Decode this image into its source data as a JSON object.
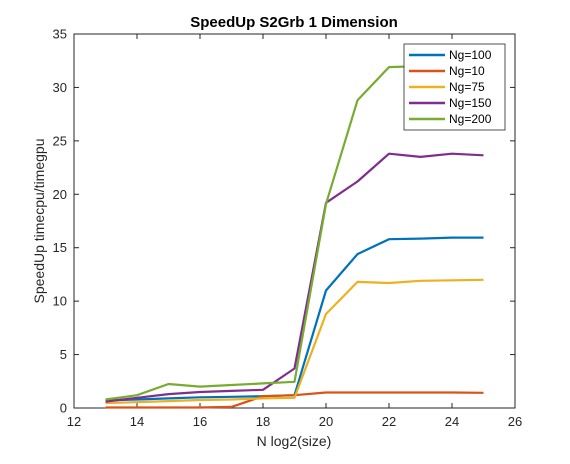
{
  "chart_data": {
    "type": "line",
    "title": "SpeedUp  S2Grb 1 Dimension",
    "xlabel": "N log2(size)",
    "ylabel": "SpeedUp timecpu/timegpu",
    "xlim": [
      12,
      26
    ],
    "ylim": [
      0,
      35
    ],
    "xticks": [
      12,
      14,
      16,
      18,
      20,
      22,
      24,
      26
    ],
    "yticks": [
      0,
      5,
      10,
      15,
      20,
      25,
      30,
      35
    ],
    "grid": false,
    "legend_position": "top-right",
    "x": [
      13,
      14,
      15,
      16,
      17,
      18,
      19,
      20,
      21,
      22,
      23,
      24,
      25
    ],
    "series": [
      {
        "name": "Ng=100",
        "color": "#0072BD",
        "values": [
          0.7,
          0.8,
          0.9,
          1.0,
          1.05,
          1.1,
          1.2,
          11.0,
          14.4,
          15.8,
          15.85,
          15.95,
          15.95
        ]
      },
      {
        "name": "Ng=10",
        "color": "#D95319",
        "values": [
          0.05,
          0.05,
          0.05,
          0.05,
          0.1,
          1.1,
          1.2,
          1.45,
          1.45,
          1.45,
          1.45,
          1.45,
          1.42
        ]
      },
      {
        "name": "Ng=75",
        "color": "#EDB120",
        "values": [
          0.45,
          0.55,
          0.65,
          0.75,
          0.8,
          0.9,
          0.95,
          8.8,
          11.8,
          11.7,
          11.9,
          11.95,
          12.0
        ]
      },
      {
        "name": "Ng=150",
        "color": "#7E2F8E",
        "values": [
          0.6,
          0.95,
          1.3,
          1.5,
          1.6,
          1.7,
          3.7,
          19.2,
          21.2,
          23.8,
          23.5,
          23.8,
          23.65
        ]
      },
      {
        "name": "Ng=200",
        "color": "#77AC30",
        "values": [
          0.8,
          1.2,
          2.25,
          2.0,
          2.15,
          2.3,
          2.45,
          19.1,
          28.8,
          31.9,
          32.0,
          32.1,
          32.15
        ]
      }
    ]
  }
}
